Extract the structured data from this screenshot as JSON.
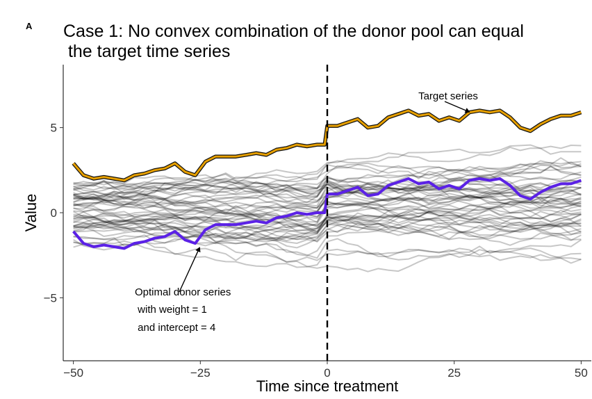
{
  "panel_label": "A",
  "chart_data": {
    "type": "line",
    "title_lines": [
      "Case 1: No convex combination of the donor pool can equal",
      " the target time series"
    ],
    "xlabel": "Time since treatment",
    "ylabel": "Value",
    "xlim": [
      -52,
      52
    ],
    "ylim": [
      -8.7,
      8.7
    ],
    "x_ticks": [
      -50,
      -25,
      0,
      25,
      50
    ],
    "x_tick_labels": [
      "−50",
      "−25",
      "0",
      "25",
      "50"
    ],
    "y_ticks": [
      -5,
      0,
      5
    ],
    "y_tick_labels": [
      "−5",
      "0",
      "5"
    ],
    "grid": false,
    "treatment_line_x": 0,
    "colors": {
      "target": "#E69F00",
      "optimal": "#5B21E6",
      "donor": "#000000",
      "outline": "#111111"
    },
    "series": [
      {
        "name": "Target series",
        "x": [
          -50,
          -48,
          -46,
          -44,
          -42,
          -40,
          -38,
          -36,
          -34,
          -32,
          -30,
          -28,
          -26,
          -24,
          -22,
          -20,
          -18,
          -16,
          -14,
          -12,
          -10,
          -8,
          -6,
          -4,
          -2,
          -0.5,
          0,
          2,
          4,
          6,
          8,
          10,
          12,
          14,
          16,
          18,
          20,
          22,
          24,
          26,
          28,
          30,
          32,
          34,
          36,
          38,
          40,
          42,
          44,
          46,
          48,
          50
        ],
        "y": [
          2.9,
          2.2,
          2.0,
          2.1,
          2.0,
          1.9,
          2.2,
          2.3,
          2.5,
          2.6,
          2.9,
          2.4,
          2.2,
          3.0,
          3.3,
          3.3,
          3.3,
          3.4,
          3.5,
          3.4,
          3.7,
          3.8,
          4.0,
          3.9,
          4.0,
          4.0,
          5.1,
          5.1,
          5.3,
          5.5,
          5.0,
          5.1,
          5.6,
          5.8,
          6.0,
          5.7,
          5.8,
          5.4,
          5.6,
          5.4,
          5.9,
          6.0,
          5.9,
          6.0,
          5.6,
          5.0,
          4.8,
          5.2,
          5.5,
          5.7,
          5.7,
          5.9
        ]
      },
      {
        "name": "Optimal donor series",
        "x": [
          -50,
          -48,
          -46,
          -44,
          -42,
          -40,
          -38,
          -36,
          -34,
          -32,
          -30,
          -28,
          -26,
          -24,
          -22,
          -20,
          -18,
          -16,
          -14,
          -12,
          -10,
          -8,
          -6,
          -4,
          -2,
          -0.5,
          0,
          2,
          4,
          6,
          8,
          10,
          12,
          14,
          16,
          18,
          20,
          22,
          24,
          26,
          28,
          30,
          32,
          34,
          36,
          38,
          40,
          42,
          44,
          46,
          48,
          50
        ],
        "y": [
          -1.1,
          -1.8,
          -2.0,
          -1.9,
          -2.0,
          -2.1,
          -1.8,
          -1.7,
          -1.5,
          -1.4,
          -1.1,
          -1.6,
          -1.8,
          -1.0,
          -0.7,
          -0.7,
          -0.7,
          -0.6,
          -0.5,
          -0.6,
          -0.3,
          -0.2,
          0.0,
          -0.1,
          0.0,
          0.0,
          1.1,
          1.1,
          1.3,
          1.5,
          1.0,
          1.1,
          1.6,
          1.8,
          2.0,
          1.7,
          1.8,
          1.4,
          1.6,
          1.4,
          1.9,
          2.0,
          1.9,
          2.0,
          1.6,
          1.0,
          0.8,
          1.2,
          1.5,
          1.7,
          1.7,
          1.9
        ]
      }
    ],
    "annotations": [
      {
        "lines": [
          "Target series"
        ],
        "arrow_to": [
          28,
          6.0
        ]
      },
      {
        "lines": [
          "Optimal donor series",
          " with weight = 1",
          " and intercept = 4"
        ],
        "arrow_to": [
          -25,
          -1.8
        ]
      }
    ]
  }
}
